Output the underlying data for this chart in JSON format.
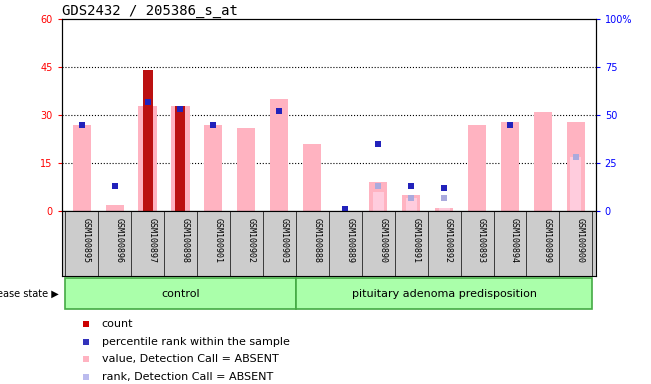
{
  "title": "GDS2432 / 205386_s_at",
  "samples": [
    "GSM100895",
    "GSM100896",
    "GSM100897",
    "GSM100898",
    "GSM100901",
    "GSM100902",
    "GSM100903",
    "GSM100888",
    "GSM100889",
    "GSM100890",
    "GSM100891",
    "GSM100892",
    "GSM100893",
    "GSM100894",
    "GSM100899",
    "GSM100900"
  ],
  "groups": [
    "control",
    "control",
    "control",
    "control",
    "control",
    "control",
    "control",
    "pituitary adenoma predisposition",
    "pituitary adenoma predisposition",
    "pituitary adenoma predisposition",
    "pituitary adenoma predisposition",
    "pituitary adenoma predisposition",
    "pituitary adenoma predisposition",
    "pituitary adenoma predisposition",
    "pituitary adenoma predisposition",
    "pituitary adenoma predisposition"
  ],
  "count_values": [
    0,
    0,
    44,
    33,
    0,
    0,
    0,
    0,
    0,
    0,
    0,
    0,
    0,
    0,
    0,
    0
  ],
  "pink_bar_values": [
    27,
    2,
    33,
    33,
    27,
    26,
    35,
    21,
    0,
    9,
    5,
    1,
    27,
    28,
    31,
    28
  ],
  "blue_square_values_pct": [
    45,
    13,
    57,
    53,
    45,
    0,
    52,
    0,
    1,
    35,
    13,
    12,
    0,
    45,
    0,
    0
  ],
  "light_pink_bar_values": [
    0,
    0,
    0,
    0,
    0,
    0,
    0,
    0,
    0,
    6,
    4,
    1,
    0,
    0,
    0,
    17
  ],
  "light_blue_square_values_pct": [
    0,
    0,
    0,
    0,
    0,
    0,
    0,
    0,
    1,
    13,
    7,
    7,
    0,
    0,
    0,
    28
  ],
  "ylim_left": [
    0,
    60
  ],
  "ylim_right": [
    0,
    100
  ],
  "yticks_left": [
    0,
    15,
    30,
    45,
    60
  ],
  "yticks_right": [
    0,
    25,
    50,
    75,
    100
  ],
  "ytick_labels_left": [
    "0",
    "15",
    "30",
    "45",
    "60"
  ],
  "ytick_labels_right": [
    "0",
    "25",
    "50",
    "75",
    "100%"
  ],
  "control_count": 7,
  "group_label_control": "control",
  "group_label_disease": "pituitary adenoma predisposition",
  "disease_state_label": "disease state",
  "legend_items": [
    "count",
    "percentile rank within the sample",
    "value, Detection Call = ABSENT",
    "rank, Detection Call = ABSENT"
  ],
  "legend_colors": [
    "#cc0000",
    "#3333bb",
    "#ffb3c1",
    "#bbbbee"
  ],
  "bar_color_red": "#bb1111",
  "bar_color_pink": "#ffb3c1",
  "square_color_blue": "#2222bb",
  "square_color_lightblue": "#aaaadd",
  "group_box_color": "#aaffaa",
  "group_box_border": "#44aa44",
  "bg_color_xaxis": "#cccccc",
  "title_fontsize": 10,
  "tick_fontsize": 7,
  "label_fontsize": 8,
  "legend_fontsize": 8
}
